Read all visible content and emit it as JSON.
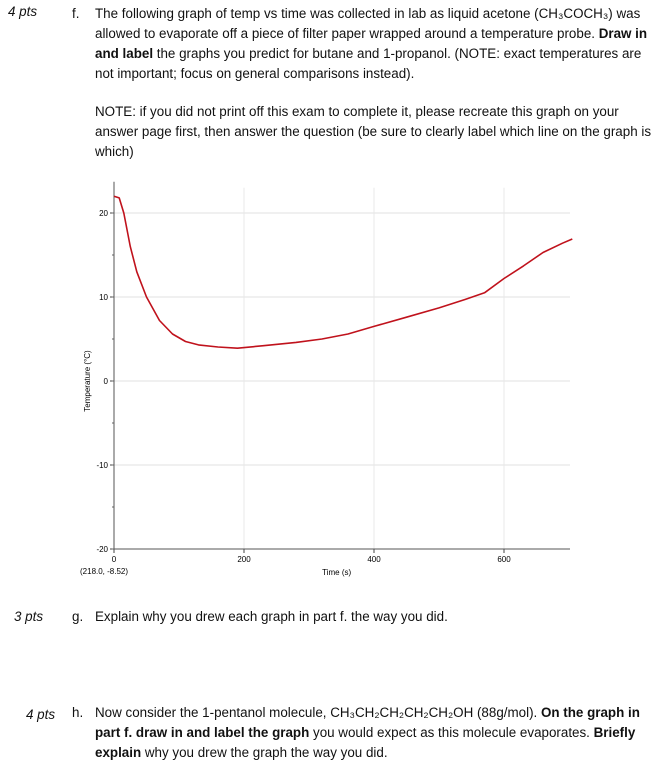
{
  "question_f": {
    "points": "4 pts",
    "letter": "f.",
    "text_1": "The following graph of temp vs time was collected in lab as liquid acetone (CH₃COCH₃) was allowed to evaporate off a piece of filter paper wrapped around a temperature probe. ",
    "bold_1": "Draw in and label",
    "text_2": " the graphs you predict for butane and 1-propanol. (NOTE: exact temperatures are not important; focus on general comparisons instead).",
    "note": "NOTE: if you did not print off this exam to complete it, please recreate this graph on your answer page first, then answer the question (be sure to clearly label which line on the graph is which)"
  },
  "chart_data": {
    "type": "line",
    "title": "",
    "xlabel": "Time (s)",
    "ylabel": "Temperature (°C)",
    "xlim": [
      0,
      705
    ],
    "ylim": [
      -20,
      23
    ],
    "xticks": [
      "0",
      "200",
      "400",
      "600"
    ],
    "yticks": [
      "20",
      "10",
      "0",
      "-10",
      "-20"
    ],
    "xtick_values": [
      0,
      200,
      400,
      600
    ],
    "ytick_values": [
      20,
      10,
      0,
      -10,
      -20
    ],
    "grid": true,
    "readout": "(218.0, -8.52)",
    "series": [
      {
        "color": "#c0121c",
        "x": [
          0,
          8,
          15,
          25,
          35,
          50,
          70,
          90,
          110,
          130,
          160,
          190,
          230,
          280,
          320,
          360,
          400,
          450,
          500,
          540,
          570,
          600,
          630,
          660,
          690,
          705
        ],
        "y": [
          22,
          21.8,
          20,
          16,
          13,
          10,
          7.2,
          5.6,
          4.7,
          4.3,
          4.05,
          3.9,
          4.2,
          4.6,
          5,
          5.6,
          6.5,
          7.6,
          8.7,
          9.7,
          10.5,
          12.2,
          13.7,
          15.3,
          16.4,
          16.9
        ]
      }
    ]
  },
  "question_g": {
    "points": "3 pts",
    "letter": "g.",
    "text": "Explain why you drew each graph in part f. the way you did."
  },
  "question_h": {
    "points": "4 pts",
    "letter": "h.",
    "text_1": "Now consider the 1-pentanol molecule, CH₃CH₂CH₂CH₂CH₂OH (88g/mol). ",
    "bold_1": "On the graph in part f. draw in and label the graph",
    "text_2": " you would expect as this molecule evaporates. ",
    "bold_2": "Briefly explain",
    "text_3": " why you drew the graph the way you did."
  }
}
